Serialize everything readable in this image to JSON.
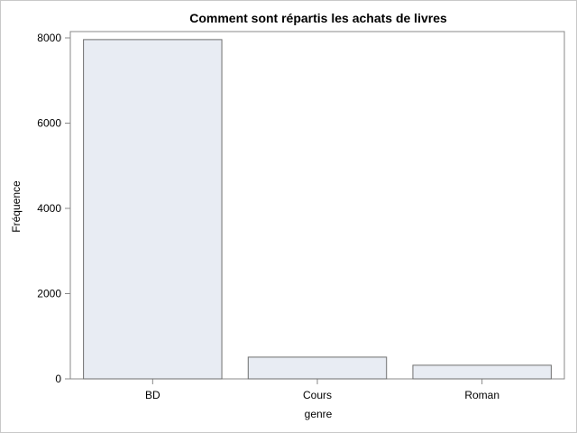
{
  "chart_data": {
    "type": "bar",
    "title": "Comment sont répartis les achats de livres",
    "xlabel": "genre",
    "ylabel": "Fréquence",
    "categories": [
      "BD",
      "Cours",
      "Roman"
    ],
    "values": [
      7960,
      510,
      320
    ],
    "ylim": [
      0,
      8000
    ],
    "yticks": [
      0,
      2000,
      4000,
      6000,
      8000
    ],
    "grid": false,
    "legend": "none",
    "colors": {
      "bar_fill": "#e8ecf3",
      "bar_stroke": "#6e6e6e",
      "axis": "#888888",
      "background": "#ffffff"
    }
  }
}
